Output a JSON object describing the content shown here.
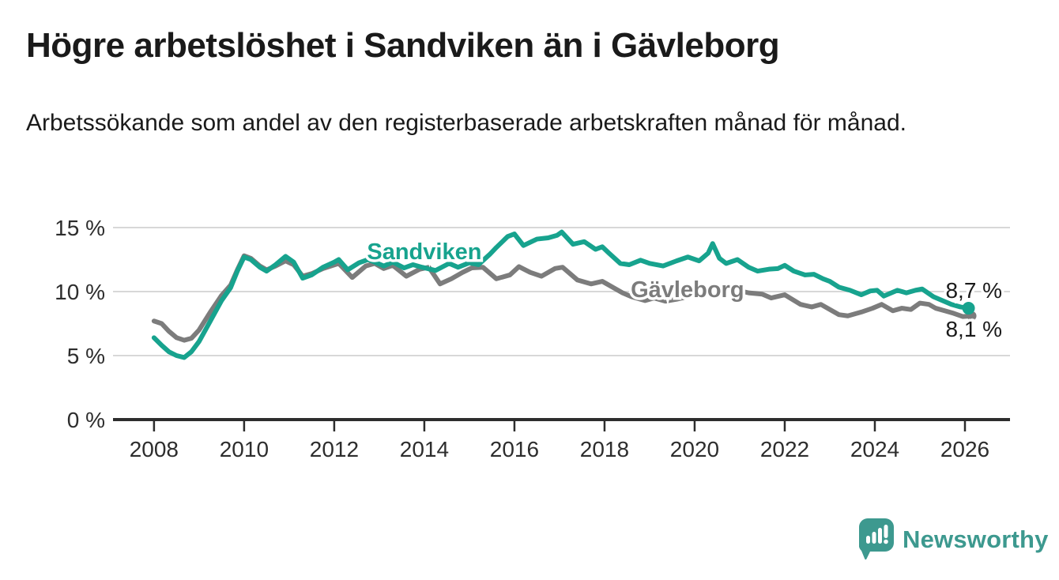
{
  "header": {
    "title": "Högre arbetslöshet i Sandviken än i Gävleborg",
    "subtitle": "Arbetssökande som andel av den registerbaserade arbetskraften månad för månad."
  },
  "footer": {
    "logo_text": "Newsworthy"
  },
  "colors": {
    "accent_teal": "#17a38e",
    "series_gray": "#7c7c7c",
    "text_dark": "#1a1a1a",
    "axis": "#2d2d2d",
    "gridline": "#d8d8d8",
    "logo_teal": "#3d998f",
    "background": "#ffffff"
  },
  "chart_data": {
    "type": "line",
    "title": "Högre arbetslöshet i Sandviken än i Gävleborg",
    "subtitle": "Arbetssökande som andel av den registerbaserade arbetskraften månad för månad.",
    "xlabel": "",
    "ylabel": "",
    "xlim": [
      2007.09,
      2027.0
    ],
    "ylim": [
      0,
      15
    ],
    "grid": "horizontal",
    "legend_position": "inline-labels",
    "x_ticks": [
      {
        "value": 2008,
        "label": "2008"
      },
      {
        "value": 2010,
        "label": "2010"
      },
      {
        "value": 2012,
        "label": "2012"
      },
      {
        "value": 2014,
        "label": "2014"
      },
      {
        "value": 2016,
        "label": "2016"
      },
      {
        "value": 2018,
        "label": "2018"
      },
      {
        "value": 2020,
        "label": "2020"
      },
      {
        "value": 2022,
        "label": "2022"
      },
      {
        "value": 2024,
        "label": "2024"
      },
      {
        "value": 2026,
        "label": "2026"
      }
    ],
    "y_ticks": [
      {
        "value": 0,
        "label": "0 %"
      },
      {
        "value": 5,
        "label": "5 %"
      },
      {
        "value": 10,
        "label": "10 %"
      },
      {
        "value": 15,
        "label": "15 %"
      }
    ],
    "series": [
      {
        "name": "Gävleborg",
        "color_key": "series_gray",
        "end_dot": true,
        "dot_radius": 6,
        "end_value_label": "8,1 %",
        "label_pos": {
          "x": 2019.84,
          "y": 10.2
        },
        "points": [
          [
            2008.0,
            7.7
          ],
          [
            2008.17,
            7.5
          ],
          [
            2008.33,
            6.9
          ],
          [
            2008.5,
            6.4
          ],
          [
            2008.67,
            6.2
          ],
          [
            2008.83,
            6.35
          ],
          [
            2009.0,
            7.0
          ],
          [
            2009.25,
            8.4
          ],
          [
            2009.5,
            9.7
          ],
          [
            2009.7,
            10.5
          ],
          [
            2009.85,
            11.7
          ],
          [
            2010.0,
            12.8
          ],
          [
            2010.15,
            12.6
          ],
          [
            2010.35,
            12.0
          ],
          [
            2010.5,
            11.7
          ],
          [
            2010.7,
            12.0
          ],
          [
            2010.92,
            12.4
          ],
          [
            2011.1,
            12.1
          ],
          [
            2011.3,
            11.2
          ],
          [
            2011.5,
            11.4
          ],
          [
            2011.75,
            11.8
          ],
          [
            2012.1,
            12.2
          ],
          [
            2012.4,
            11.1
          ],
          [
            2012.7,
            12.0
          ],
          [
            2012.9,
            12.2
          ],
          [
            2013.1,
            11.8
          ],
          [
            2013.3,
            12.05
          ],
          [
            2013.6,
            11.2
          ],
          [
            2013.9,
            11.75
          ],
          [
            2014.1,
            11.9
          ],
          [
            2014.35,
            10.6
          ],
          [
            2014.6,
            11.0
          ],
          [
            2014.85,
            11.5
          ],
          [
            2015.05,
            11.85
          ],
          [
            2015.3,
            11.9
          ],
          [
            2015.6,
            11.0
          ],
          [
            2015.9,
            11.3
          ],
          [
            2016.1,
            11.95
          ],
          [
            2016.35,
            11.5
          ],
          [
            2016.6,
            11.2
          ],
          [
            2016.9,
            11.8
          ],
          [
            2017.07,
            11.9
          ],
          [
            2017.4,
            10.9
          ],
          [
            2017.7,
            10.6
          ],
          [
            2017.95,
            10.8
          ],
          [
            2018.15,
            10.4
          ],
          [
            2018.4,
            9.9
          ],
          [
            2018.6,
            9.6
          ],
          [
            2018.9,
            9.3
          ],
          [
            2019.1,
            9.5
          ],
          [
            2019.35,
            9.25
          ],
          [
            2019.6,
            9.4
          ],
          [
            2019.85,
            9.6
          ],
          [
            2020.1,
            9.7
          ],
          [
            2020.4,
            10.35
          ],
          [
            2020.7,
            10.3
          ],
          [
            2020.95,
            10.1
          ],
          [
            2021.2,
            9.9
          ],
          [
            2021.5,
            9.8
          ],
          [
            2021.7,
            9.5
          ],
          [
            2022.0,
            9.75
          ],
          [
            2022.35,
            9.0
          ],
          [
            2022.6,
            8.8
          ],
          [
            2022.8,
            9.0
          ],
          [
            2023.2,
            8.2
          ],
          [
            2023.4,
            8.1
          ],
          [
            2023.7,
            8.4
          ],
          [
            2023.95,
            8.7
          ],
          [
            2024.15,
            9.0
          ],
          [
            2024.4,
            8.5
          ],
          [
            2024.6,
            8.7
          ],
          [
            2024.8,
            8.6
          ],
          [
            2025.0,
            9.1
          ],
          [
            2025.2,
            9.0
          ],
          [
            2025.35,
            8.7
          ],
          [
            2025.55,
            8.5
          ],
          [
            2025.75,
            8.3
          ],
          [
            2025.95,
            8.05
          ],
          [
            2026.15,
            8.1
          ]
        ]
      },
      {
        "name": "Sandviken",
        "color_key": "accent_teal",
        "end_dot": true,
        "dot_radius": 8,
        "end_value_label": "8,7 %",
        "label_pos": {
          "x": 2014.0,
          "y": 13.15
        },
        "points": [
          [
            2008.0,
            6.4
          ],
          [
            2008.17,
            5.8
          ],
          [
            2008.33,
            5.3
          ],
          [
            2008.5,
            5.0
          ],
          [
            2008.67,
            4.85
          ],
          [
            2008.83,
            5.3
          ],
          [
            2009.0,
            6.1
          ],
          [
            2009.25,
            7.7
          ],
          [
            2009.5,
            9.3
          ],
          [
            2009.7,
            10.3
          ],
          [
            2009.85,
            11.6
          ],
          [
            2010.0,
            12.7
          ],
          [
            2010.15,
            12.5
          ],
          [
            2010.35,
            11.9
          ],
          [
            2010.5,
            11.6
          ],
          [
            2010.7,
            12.1
          ],
          [
            2010.92,
            12.75
          ],
          [
            2011.1,
            12.3
          ],
          [
            2011.3,
            11.05
          ],
          [
            2011.5,
            11.3
          ],
          [
            2011.75,
            11.9
          ],
          [
            2012.0,
            12.3
          ],
          [
            2012.1,
            12.5
          ],
          [
            2012.3,
            11.7
          ],
          [
            2012.55,
            12.25
          ],
          [
            2012.75,
            12.5
          ],
          [
            2012.9,
            12.3
          ],
          [
            2013.1,
            12.0
          ],
          [
            2013.3,
            12.3
          ],
          [
            2013.55,
            11.85
          ],
          [
            2013.75,
            12.1
          ],
          [
            2013.95,
            11.9
          ],
          [
            2014.25,
            11.65
          ],
          [
            2014.55,
            12.2
          ],
          [
            2014.75,
            11.9
          ],
          [
            2015.0,
            12.25
          ],
          [
            2015.2,
            12.1
          ],
          [
            2015.45,
            12.9
          ],
          [
            2015.6,
            13.45
          ],
          [
            2015.85,
            14.3
          ],
          [
            2016.0,
            14.5
          ],
          [
            2016.2,
            13.6
          ],
          [
            2016.5,
            14.1
          ],
          [
            2016.75,
            14.2
          ],
          [
            2016.95,
            14.4
          ],
          [
            2017.05,
            14.65
          ],
          [
            2017.3,
            13.7
          ],
          [
            2017.55,
            13.9
          ],
          [
            2017.8,
            13.3
          ],
          [
            2017.95,
            13.5
          ],
          [
            2018.1,
            13.0
          ],
          [
            2018.35,
            12.2
          ],
          [
            2018.55,
            12.1
          ],
          [
            2018.8,
            12.45
          ],
          [
            2019.0,
            12.2
          ],
          [
            2019.3,
            12.0
          ],
          [
            2019.6,
            12.4
          ],
          [
            2019.85,
            12.7
          ],
          [
            2020.1,
            12.4
          ],
          [
            2020.3,
            13.0
          ],
          [
            2020.4,
            13.75
          ],
          [
            2020.55,
            12.6
          ],
          [
            2020.7,
            12.2
          ],
          [
            2020.95,
            12.5
          ],
          [
            2021.2,
            11.9
          ],
          [
            2021.4,
            11.6
          ],
          [
            2021.65,
            11.75
          ],
          [
            2021.85,
            11.8
          ],
          [
            2022.0,
            12.05
          ],
          [
            2022.2,
            11.6
          ],
          [
            2022.45,
            11.3
          ],
          [
            2022.65,
            11.35
          ],
          [
            2022.85,
            11.0
          ],
          [
            2023.0,
            10.8
          ],
          [
            2023.2,
            10.35
          ],
          [
            2023.45,
            10.1
          ],
          [
            2023.7,
            9.75
          ],
          [
            2023.9,
            10.05
          ],
          [
            2024.05,
            10.1
          ],
          [
            2024.2,
            9.65
          ],
          [
            2024.5,
            10.1
          ],
          [
            2024.7,
            9.9
          ],
          [
            2024.9,
            10.1
          ],
          [
            2025.05,
            10.2
          ],
          [
            2025.3,
            9.6
          ],
          [
            2025.5,
            9.3
          ],
          [
            2025.7,
            9.0
          ],
          [
            2025.9,
            8.8
          ],
          [
            2026.08,
            8.7
          ]
        ]
      }
    ],
    "annotations": [
      {
        "text": "8,7 %",
        "x": 2025.57,
        "y": 9.5
      },
      {
        "text": "8,1 %",
        "x": 2025.57,
        "y": 6.48
      }
    ]
  }
}
